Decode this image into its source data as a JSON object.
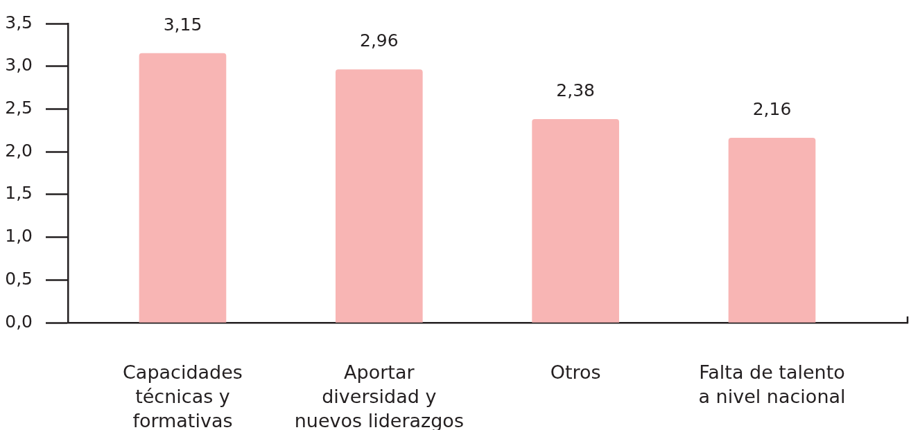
{
  "chart_data": {
    "type": "bar",
    "categories": [
      "Capacidades\ntécnicas y\nformativas",
      "Aportar\ndiversidad y\nnuevos liderazgos",
      "Otros",
      "Falta de talento\na nivel nacional"
    ],
    "values": [
      3.15,
      2.96,
      2.38,
      2.16
    ],
    "color": "#f8b5b4",
    "ylim": [
      0,
      3.5
    ],
    "yticks": [
      {
        "value": 0,
        "label": "0,0"
      },
      {
        "value": 0.5,
        "label": "0,5"
      },
      {
        "value": 1,
        "label": "1,0"
      },
      {
        "value": 1.5,
        "label": "1,5"
      },
      {
        "value": 2,
        "label": "2,0"
      },
      {
        "value": 2.5,
        "label": "2,5"
      },
      {
        "value": 3,
        "label": "3,0"
      },
      {
        "value": 3.5,
        "label": "3,5"
      }
    ],
    "value_labels": [
      "3,15",
      "2,96",
      "2,38",
      "2,16"
    ]
  }
}
